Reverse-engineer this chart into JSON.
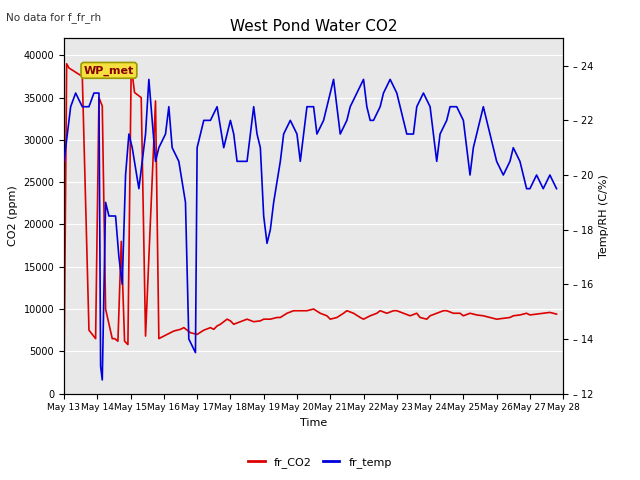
{
  "title": "West Pond Water CO2",
  "top_left_text": "No data for f_fr_rh",
  "xlabel": "Time",
  "ylabel_left": "CO2 (ppm)",
  "ylabel_right": "Temp/RH (C/%)",
  "legend_labels": [
    "fr_CO2",
    "fr_temp"
  ],
  "legend_colors": [
    "#dd0000",
    "#0000dd"
  ],
  "box_label": "WP_met",
  "background_color": "#e8e8e8",
  "ylim_left": [
    0,
    42000
  ],
  "ylim_right": [
    12,
    25
  ],
  "yticks_left": [
    0,
    5000,
    10000,
    15000,
    20000,
    25000,
    30000,
    35000,
    40000
  ],
  "yticks_right": [
    12,
    14,
    16,
    18,
    20,
    22,
    24
  ],
  "co2_x": [
    13.0,
    13.08,
    13.15,
    13.55,
    13.75,
    13.85,
    13.95,
    14.05,
    14.15,
    14.25,
    14.45,
    14.52,
    14.62,
    14.72,
    14.82,
    14.92,
    15.02,
    15.12,
    15.32,
    15.45,
    15.75,
    15.85,
    16.0,
    16.1,
    16.2,
    16.3,
    16.4,
    16.5,
    16.6,
    16.7,
    16.8,
    17.0,
    17.2,
    17.4,
    17.5,
    17.6,
    17.7,
    17.8,
    17.9,
    18.0,
    18.1,
    18.3,
    18.5,
    18.7,
    18.9,
    19.0,
    19.2,
    19.4,
    19.5,
    19.7,
    19.9,
    20.1,
    20.3,
    20.5,
    20.7,
    20.9,
    21.0,
    21.2,
    21.4,
    21.5,
    21.7,
    21.9,
    22.0,
    22.2,
    22.4,
    22.5,
    22.7,
    22.9,
    23.0,
    23.2,
    23.4,
    23.6,
    23.7,
    23.9,
    24.0,
    24.2,
    24.4,
    24.5,
    24.7,
    24.9,
    25.0,
    25.2,
    25.4,
    25.6,
    25.8,
    26.0,
    26.2,
    26.4,
    26.5,
    26.7,
    26.9,
    27.0,
    27.2,
    27.4,
    27.6,
    27.8
  ],
  "co2_y": [
    2000,
    39000,
    38500,
    37500,
    7500,
    7000,
    6500,
    35000,
    34000,
    10000,
    6500,
    6500,
    6200,
    18000,
    6200,
    5800,
    38800,
    35600,
    35000,
    6800,
    34600,
    6500,
    6800,
    7000,
    7200,
    7400,
    7500,
    7600,
    7800,
    7500,
    7200,
    7000,
    7500,
    7800,
    7600,
    8000,
    8200,
    8500,
    8800,
    8600,
    8200,
    8500,
    8800,
    8500,
    8600,
    8800,
    8800,
    9000,
    9000,
    9500,
    9800,
    9800,
    9800,
    10000,
    9500,
    9200,
    8800,
    9000,
    9500,
    9800,
    9500,
    9000,
    8800,
    9200,
    9500,
    9800,
    9500,
    9800,
    9800,
    9500,
    9200,
    9500,
    9000,
    8800,
    9200,
    9500,
    9800,
    9800,
    9500,
    9500,
    9200,
    9500,
    9300,
    9200,
    9000,
    8800,
    8900,
    9000,
    9200,
    9300,
    9500,
    9300,
    9400,
    9500,
    9600,
    9400
  ],
  "temp_x": [
    13.0,
    13.1,
    13.2,
    13.35,
    13.55,
    13.75,
    13.9,
    14.05,
    14.1,
    14.15,
    14.25,
    14.35,
    14.55,
    14.65,
    14.75,
    14.85,
    14.95,
    15.05,
    15.25,
    15.45,
    15.55,
    15.75,
    15.85,
    16.05,
    16.15,
    16.25,
    16.45,
    16.65,
    16.75,
    16.95,
    17.0,
    17.2,
    17.4,
    17.6,
    17.8,
    17.9,
    18.0,
    18.1,
    18.2,
    18.3,
    18.5,
    18.6,
    18.7,
    18.8,
    18.9,
    19.0,
    19.1,
    19.2,
    19.3,
    19.5,
    19.6,
    19.8,
    20.0,
    20.1,
    20.2,
    20.3,
    20.5,
    20.6,
    20.8,
    21.0,
    21.1,
    21.2,
    21.3,
    21.5,
    21.6,
    21.8,
    22.0,
    22.1,
    22.2,
    22.3,
    22.5,
    22.6,
    22.8,
    23.0,
    23.1,
    23.2,
    23.3,
    23.5,
    23.6,
    23.8,
    24.0,
    24.1,
    24.2,
    24.3,
    24.5,
    24.6,
    24.8,
    25.0,
    25.1,
    25.2,
    25.3,
    25.5,
    25.6,
    25.8,
    26.0,
    26.2,
    26.4,
    26.5,
    26.7,
    26.9,
    27.0,
    27.2,
    27.4,
    27.6,
    27.8
  ],
  "temp_y": [
    20.5,
    21.5,
    22.5,
    23.0,
    22.5,
    22.5,
    23.0,
    23.0,
    13.0,
    12.5,
    19.0,
    18.5,
    18.5,
    17.0,
    16.0,
    20.0,
    21.5,
    21.0,
    19.5,
    21.5,
    23.5,
    20.5,
    21.0,
    21.5,
    22.5,
    21.0,
    20.5,
    19.0,
    14.0,
    13.5,
    21.0,
    22.0,
    22.0,
    22.5,
    21.0,
    21.5,
    22.0,
    21.5,
    20.5,
    20.5,
    20.5,
    21.5,
    22.5,
    21.5,
    21.0,
    18.5,
    17.5,
    18.0,
    19.0,
    20.5,
    21.5,
    22.0,
    21.5,
    20.5,
    21.5,
    22.5,
    22.5,
    21.5,
    22.0,
    23.0,
    23.5,
    22.5,
    21.5,
    22.0,
    22.5,
    23.0,
    23.5,
    22.5,
    22.0,
    22.0,
    22.5,
    23.0,
    23.5,
    23.0,
    22.5,
    22.0,
    21.5,
    21.5,
    22.5,
    23.0,
    22.5,
    21.5,
    20.5,
    21.5,
    22.0,
    22.5,
    22.5,
    22.0,
    21.0,
    20.0,
    21.0,
    22.0,
    22.5,
    21.5,
    20.5,
    20.0,
    20.5,
    21.0,
    20.5,
    19.5,
    19.5,
    20.0,
    19.5,
    20.0,
    19.5
  ],
  "xmin": 13,
  "xmax": 28,
  "xtick_positions": [
    13,
    14,
    15,
    16,
    17,
    18,
    19,
    20,
    21,
    22,
    23,
    24,
    25,
    26,
    27,
    28
  ],
  "xtick_labels": [
    "May 13",
    "May 14",
    "May 15",
    "May 16",
    "May 17",
    "May 18",
    "May 19",
    "May 20",
    "May 21",
    "May 22",
    "May 23",
    "May 24",
    "May 25",
    "May 26",
    "May 27",
    "May 28"
  ],
  "figsize": [
    6.4,
    4.8
  ],
  "dpi": 100
}
